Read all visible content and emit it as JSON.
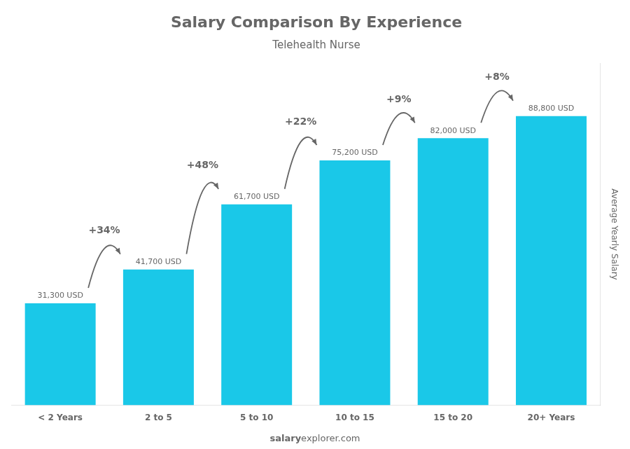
{
  "chart_data": {
    "type": "bar",
    "title": "Salary Comparison By Experience",
    "subtitle": "Telehealth Nurse",
    "ylabel": "Average Yearly Salary",
    "categories": [
      "< 2 Years",
      "2 to 5",
      "5 to 10",
      "10 to 15",
      "15 to 20",
      "20+ Years"
    ],
    "values": [
      31300,
      41700,
      61700,
      75200,
      82000,
      88800
    ],
    "value_labels": [
      "31,300 USD",
      "41,700 USD",
      "61,700 USD",
      "75,200 USD",
      "82,000 USD",
      "88,800 USD"
    ],
    "data_labels": true,
    "color": "#1ac8e8",
    "ylim": [
      0,
      105000
    ],
    "yticks": [],
    "tick_labels": "x",
    "grid": false,
    "annotations": [
      "+34%",
      "+48%",
      "+22%",
      "+9%",
      "+8%"
    ],
    "footer": [
      "salary",
      "explorer.com"
    ]
  }
}
